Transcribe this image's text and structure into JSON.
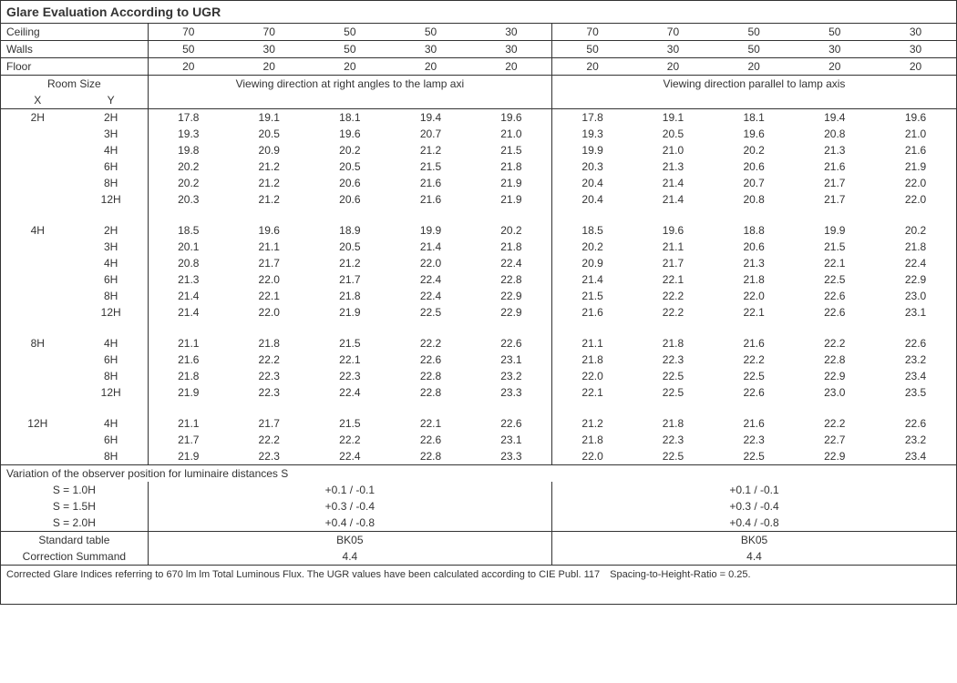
{
  "title": "Glare Evaluation According to UGR",
  "header_labels": {
    "ceiling": "Ceiling",
    "walls": "Walls",
    "floor": "Floor"
  },
  "ceiling": [
    "70",
    "70",
    "50",
    "50",
    "30",
    "70",
    "70",
    "50",
    "50",
    "30"
  ],
  "walls": [
    "50",
    "30",
    "50",
    "30",
    "30",
    "50",
    "30",
    "50",
    "30",
    "30"
  ],
  "floor": [
    "20",
    "20",
    "20",
    "20",
    "20",
    "20",
    "20",
    "20",
    "20",
    "20"
  ],
  "room_size_label": "Room Size",
  "x_label": "X",
  "y_label": "Y",
  "direction_left": "Viewing direction at right angles to the lamp axi",
  "direction_right": "Viewing direction parallel to lamp axis",
  "groups": [
    {
      "x": "2H",
      "rows": [
        {
          "y": "2H",
          "v": [
            "17.8",
            "19.1",
            "18.1",
            "19.4",
            "19.6",
            "17.8",
            "19.1",
            "18.1",
            "19.4",
            "19.6"
          ]
        },
        {
          "y": "3H",
          "v": [
            "19.3",
            "20.5",
            "19.6",
            "20.7",
            "21.0",
            "19.3",
            "20.5",
            "19.6",
            "20.8",
            "21.0"
          ]
        },
        {
          "y": "4H",
          "v": [
            "19.8",
            "20.9",
            "20.2",
            "21.2",
            "21.5",
            "19.9",
            "21.0",
            "20.2",
            "21.3",
            "21.6"
          ]
        },
        {
          "y": "6H",
          "v": [
            "20.2",
            "21.2",
            "20.5",
            "21.5",
            "21.8",
            "20.3",
            "21.3",
            "20.6",
            "21.6",
            "21.9"
          ]
        },
        {
          "y": "8H",
          "v": [
            "20.2",
            "21.2",
            "20.6",
            "21.6",
            "21.9",
            "20.4",
            "21.4",
            "20.7",
            "21.7",
            "22.0"
          ]
        },
        {
          "y": "12H",
          "v": [
            "20.3",
            "21.2",
            "20.6",
            "21.6",
            "21.9",
            "20.4",
            "21.4",
            "20.8",
            "21.7",
            "22.0"
          ]
        }
      ]
    },
    {
      "x": "4H",
      "rows": [
        {
          "y": "2H",
          "v": [
            "18.5",
            "19.6",
            "18.9",
            "19.9",
            "20.2",
            "18.5",
            "19.6",
            "18.8",
            "19.9",
            "20.2"
          ]
        },
        {
          "y": "3H",
          "v": [
            "20.1",
            "21.1",
            "20.5",
            "21.4",
            "21.8",
            "20.2",
            "21.1",
            "20.6",
            "21.5",
            "21.8"
          ]
        },
        {
          "y": "4H",
          "v": [
            "20.8",
            "21.7",
            "21.2",
            "22.0",
            "22.4",
            "20.9",
            "21.7",
            "21.3",
            "22.1",
            "22.4"
          ]
        },
        {
          "y": "6H",
          "v": [
            "21.3",
            "22.0",
            "21.7",
            "22.4",
            "22.8",
            "21.4",
            "22.1",
            "21.8",
            "22.5",
            "22.9"
          ]
        },
        {
          "y": "8H",
          "v": [
            "21.4",
            "22.1",
            "21.8",
            "22.4",
            "22.9",
            "21.5",
            "22.2",
            "22.0",
            "22.6",
            "23.0"
          ]
        },
        {
          "y": "12H",
          "v": [
            "21.4",
            "22.0",
            "21.9",
            "22.5",
            "22.9",
            "21.6",
            "22.2",
            "22.1",
            "22.6",
            "23.1"
          ]
        }
      ]
    },
    {
      "x": "8H",
      "rows": [
        {
          "y": "4H",
          "v": [
            "21.1",
            "21.8",
            "21.5",
            "22.2",
            "22.6",
            "21.1",
            "21.8",
            "21.6",
            "22.2",
            "22.6"
          ]
        },
        {
          "y": "6H",
          "v": [
            "21.6",
            "22.2",
            "22.1",
            "22.6",
            "23.1",
            "21.8",
            "22.3",
            "22.2",
            "22.8",
            "23.2"
          ]
        },
        {
          "y": "8H",
          "v": [
            "21.8",
            "22.3",
            "22.3",
            "22.8",
            "23.2",
            "22.0",
            "22.5",
            "22.5",
            "22.9",
            "23.4"
          ]
        },
        {
          "y": "12H",
          "v": [
            "21.9",
            "22.3",
            "22.4",
            "22.8",
            "23.3",
            "22.1",
            "22.5",
            "22.6",
            "23.0",
            "23.5"
          ]
        }
      ]
    },
    {
      "x": "12H",
      "rows": [
        {
          "y": "4H",
          "v": [
            "21.1",
            "21.7",
            "21.5",
            "22.1",
            "22.6",
            "21.2",
            "21.8",
            "21.6",
            "22.2",
            "22.6"
          ]
        },
        {
          "y": "6H",
          "v": [
            "21.7",
            "22.2",
            "22.2",
            "22.6",
            "23.1",
            "21.8",
            "22.3",
            "22.3",
            "22.7",
            "23.2"
          ]
        },
        {
          "y": "8H",
          "v": [
            "21.9",
            "22.3",
            "22.4",
            "22.8",
            "23.3",
            "22.0",
            "22.5",
            "22.5",
            "22.9",
            "23.4"
          ]
        }
      ]
    }
  ],
  "variation_title": "Variation of the observer position for luminaire distances S",
  "variation_rows": [
    {
      "label": "S = 1.0H",
      "left": "+0.1 / -0.1",
      "right": "+0.1 / -0.1"
    },
    {
      "label": "S = 1.5H",
      "left": "+0.3 / -0.4",
      "right": "+0.3 / -0.4"
    },
    {
      "label": "S = 2.0H",
      "left": "+0.4 / -0.8",
      "right": "+0.4 / -0.8"
    }
  ],
  "standard_table_label": "Standard table",
  "correction_label": "Correction Summand",
  "standard_table_left": "BK05",
  "standard_table_right": "BK05",
  "correction_left": "4.4",
  "correction_right": "4.4",
  "footer": "Corrected Glare Indices referring to 670 lm lm Total Luminous Flux. The UGR values have been calculated according to CIE Publ. 117 Spacing-to-Height-Ratio = 0.25."
}
